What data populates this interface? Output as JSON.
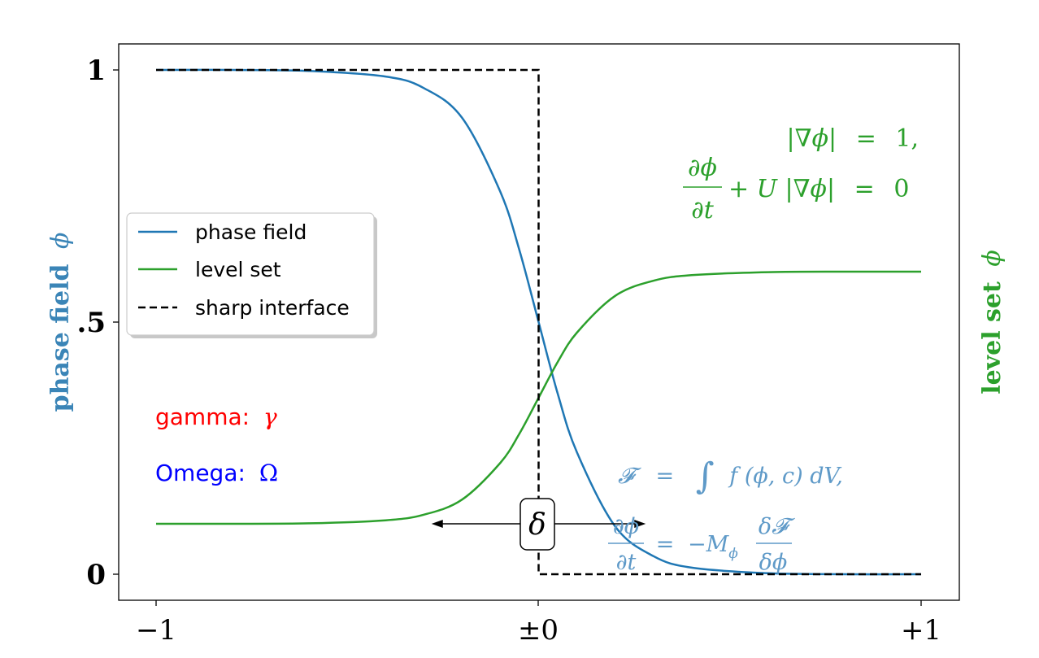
{
  "chart_data": {
    "type": "line",
    "x_ticks": [
      {
        "value": -1,
        "label": "−1"
      },
      {
        "value": 0,
        "label": "±0"
      },
      {
        "value": 1,
        "label": "+1"
      }
    ],
    "y_ticks": [
      {
        "value": 0,
        "label": "0"
      },
      {
        "value": 0.5,
        "label": ".5"
      },
      {
        "value": 1,
        "label": "1"
      }
    ],
    "xlim": [
      -1.1,
      1.1
    ],
    "ylim": [
      -0.05,
      1.05
    ],
    "ylabel_left": {
      "text": "phase field",
      "symbol": "ϕ",
      "color": "#3b85b7"
    },
    "ylabel_right": {
      "text": "level set",
      "symbol": "ϕ",
      "color": "#2ca02c"
    },
    "legend": {
      "position": "center-left",
      "entries": [
        {
          "label": "phase field",
          "color": "#1f77b4",
          "style": "solid"
        },
        {
          "label": "level set",
          "color": "#2ca02c",
          "style": "solid"
        },
        {
          "label": "sharp interface",
          "color": "#000000",
          "style": "dashed"
        }
      ]
    },
    "series": [
      {
        "name": "phase field",
        "color": "#1f77b4",
        "style": "solid",
        "x": [
          -1.0,
          -0.8,
          -0.6,
          -0.4,
          -0.3,
          -0.2,
          -0.1,
          -0.05,
          0.0,
          0.05,
          0.1,
          0.2,
          0.3,
          0.4,
          0.6,
          0.8,
          1.0
        ],
        "y": [
          1.0,
          1.0,
          0.998,
          0.987,
          0.964,
          0.905,
          0.758,
          0.642,
          0.5,
          0.358,
          0.242,
          0.095,
          0.036,
          0.013,
          0.002,
          0.0,
          0.0
        ]
      },
      {
        "name": "level set",
        "color": "#2ca02c",
        "style": "solid",
        "x": [
          -1.0,
          -0.8,
          -0.6,
          -0.4,
          -0.3,
          -0.2,
          -0.1,
          -0.05,
          0.0,
          0.05,
          0.1,
          0.2,
          0.3,
          0.4,
          0.6,
          0.8,
          1.0
        ],
        "y": [
          0.1,
          0.1,
          0.101,
          0.107,
          0.118,
          0.148,
          0.221,
          0.279,
          0.35,
          0.421,
          0.479,
          0.552,
          0.582,
          0.593,
          0.599,
          0.6,
          0.6
        ]
      },
      {
        "name": "sharp interface",
        "color": "#000000",
        "style": "dashed",
        "x": [
          -1.0,
          0.0,
          0.0,
          1.0
        ],
        "y": [
          1.0,
          1.0,
          0.0,
          0.0
        ]
      }
    ],
    "annotations": {
      "level_set_eq_line1": {
        "lhs": "|∇ϕ|",
        "rel": "=",
        "rhs": "1,",
        "color": "#2ca02c"
      },
      "level_set_eq_line2": {
        "num": "∂ϕ",
        "den": "∂t",
        "rest": "+ U |∇ϕ|",
        "rel": "=",
        "rhs": "0",
        "color": "#2ca02c"
      },
      "phase_field_eq_line1": {
        "lhs": "𝓕",
        "rel": "=",
        "integral": "∫",
        "rhs": "f (ϕ, c) dV,",
        "color": "#5f9ac8"
      },
      "phase_field_eq_line2": {
        "num": "∂ϕ",
        "den": "∂t",
        "rel": "=",
        "coef": "−M",
        "coef_sub": "ϕ",
        "frac_num": "δ𝓕",
        "frac_den": "δϕ",
        "color": "#5f9ac8"
      },
      "delta": {
        "label": "δ",
        "arrow_from": -0.28,
        "arrow_to": 0.28,
        "y": 0.1
      },
      "gamma": {
        "label": "gamma:",
        "symbol": "γ",
        "color": "#ff0000"
      },
      "omega": {
        "label": "Omega:",
        "symbol": "Ω",
        "color": "#0000ff"
      }
    }
  }
}
